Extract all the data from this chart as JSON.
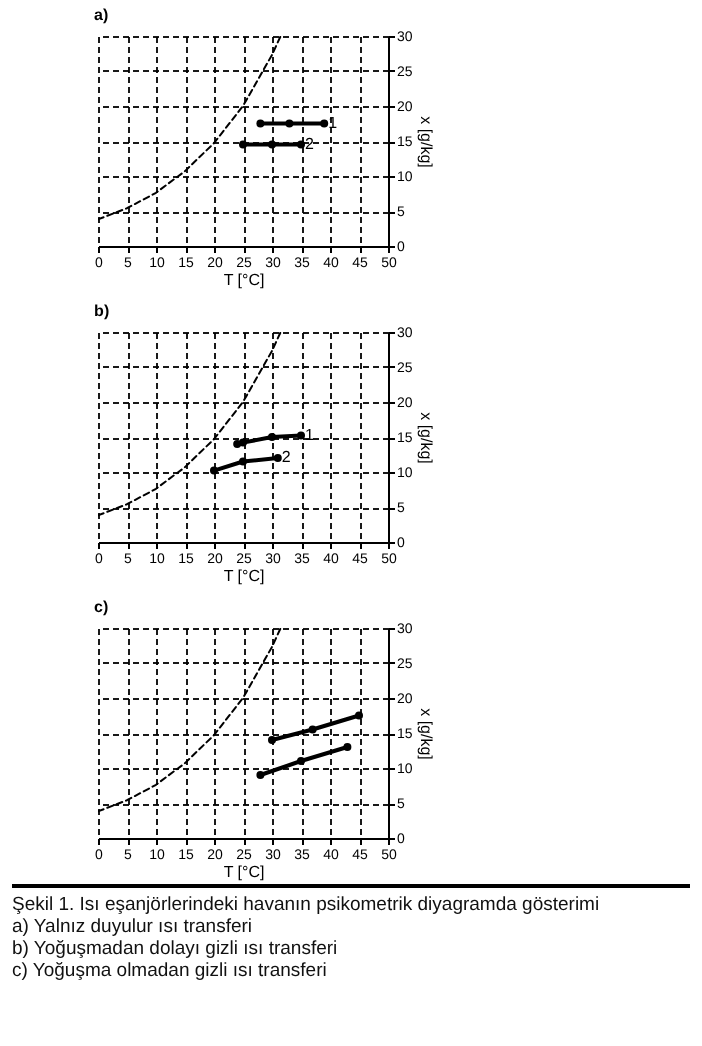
{
  "chart_data": [
    {
      "type": "line",
      "title": "a)",
      "xlabel": "T [°C]",
      "ylabel": "x [g/kg]",
      "xlim": [
        0,
        50
      ],
      "ylim": [
        0,
        30
      ],
      "xticks": [
        0,
        5,
        10,
        15,
        20,
        25,
        30,
        35,
        40,
        45,
        50
      ],
      "yticks": [
        0,
        5,
        10,
        15,
        20,
        25,
        30
      ],
      "grid": true,
      "series": [
        {
          "color": "#000000",
          "line_style": "dashed",
          "marker": "none",
          "x": [
            0,
            5,
            10,
            15,
            20,
            25,
            30,
            31.5
          ],
          "values": [
            3.8,
            5.4,
            7.6,
            10.7,
            14.7,
            20,
            27.3,
            30
          ]
        },
        {
          "color": "#000000",
          "line_style": "solid",
          "marker": "circle",
          "x": [
            28,
            33,
            39
          ],
          "values": [
            17.5,
            17.5,
            17.5
          ]
        },
        {
          "color": "#000000",
          "line_style": "solid",
          "marker": "circle",
          "x": [
            25,
            30,
            35
          ],
          "values": [
            14.5,
            14.5,
            14.5
          ]
        }
      ],
      "annotations": [
        {
          "text": "1",
          "x": 39,
          "y": 17.5
        },
        {
          "text": "2",
          "x": 35,
          "y": 14.5
        }
      ]
    },
    {
      "type": "line",
      "title": "b)",
      "xlabel": "T [°C]",
      "ylabel": "x [g/kg]",
      "xlim": [
        0,
        50
      ],
      "ylim": [
        0,
        30
      ],
      "xticks": [
        0,
        5,
        10,
        15,
        20,
        25,
        30,
        35,
        40,
        45,
        50
      ],
      "yticks": [
        0,
        5,
        10,
        15,
        20,
        25,
        30
      ],
      "grid": true,
      "series": [
        {
          "color": "#000000",
          "line_style": "dashed",
          "marker": "none",
          "x": [
            0,
            5,
            10,
            15,
            20,
            25,
            30,
            31.5
          ],
          "values": [
            3.8,
            5.4,
            7.6,
            10.7,
            14.7,
            20,
            27.3,
            30
          ]
        },
        {
          "color": "#000000",
          "line_style": "solid",
          "marker": "circle",
          "x": [
            24,
            25,
            30,
            35
          ],
          "values": [
            14,
            14.2,
            15,
            15.2
          ]
        },
        {
          "color": "#000000",
          "line_style": "solid",
          "marker": "circle",
          "x": [
            20,
            25,
            31
          ],
          "values": [
            10.2,
            11.5,
            12
          ]
        }
      ],
      "annotations": [
        {
          "text": "1",
          "x": 35,
          "y": 15.2
        },
        {
          "text": "2",
          "x": 31,
          "y": 12
        }
      ]
    },
    {
      "type": "line",
      "title": "c)",
      "xlabel": "T [°C]",
      "ylabel": "x [g/kg]",
      "xlim": [
        0,
        50
      ],
      "ylim": [
        0,
        30
      ],
      "xticks": [
        0,
        5,
        10,
        15,
        20,
        25,
        30,
        35,
        40,
        45,
        50
      ],
      "yticks": [
        0,
        5,
        10,
        15,
        20,
        25,
        30
      ],
      "grid": true,
      "series": [
        {
          "color": "#000000",
          "line_style": "dashed",
          "marker": "none",
          "x": [
            0,
            5,
            10,
            15,
            20,
            25,
            30,
            31.5
          ],
          "values": [
            3.8,
            5.4,
            7.6,
            10.7,
            14.7,
            20,
            27.3,
            30
          ]
        },
        {
          "color": "#000000",
          "line_style": "solid",
          "marker": "circle",
          "x": [
            30,
            37,
            45
          ],
          "values": [
            14,
            15.5,
            17.5
          ]
        },
        {
          "color": "#000000",
          "line_style": "solid",
          "marker": "circle",
          "x": [
            28,
            35,
            43
          ],
          "values": [
            9,
            11,
            13
          ]
        }
      ],
      "annotations": [
        "Şekil 1. Isı eşanjörlerindeki havanın psikometrik diyagramda gösterimi",
        "a)   Yalnız duyulur ısı transferi",
        "b)   Yoğuşmadan dolayı gizli ısı transferi",
        "c)   Yoğuşma olmadan gizli ısı transferi"
      ]
    }
  ]
}
